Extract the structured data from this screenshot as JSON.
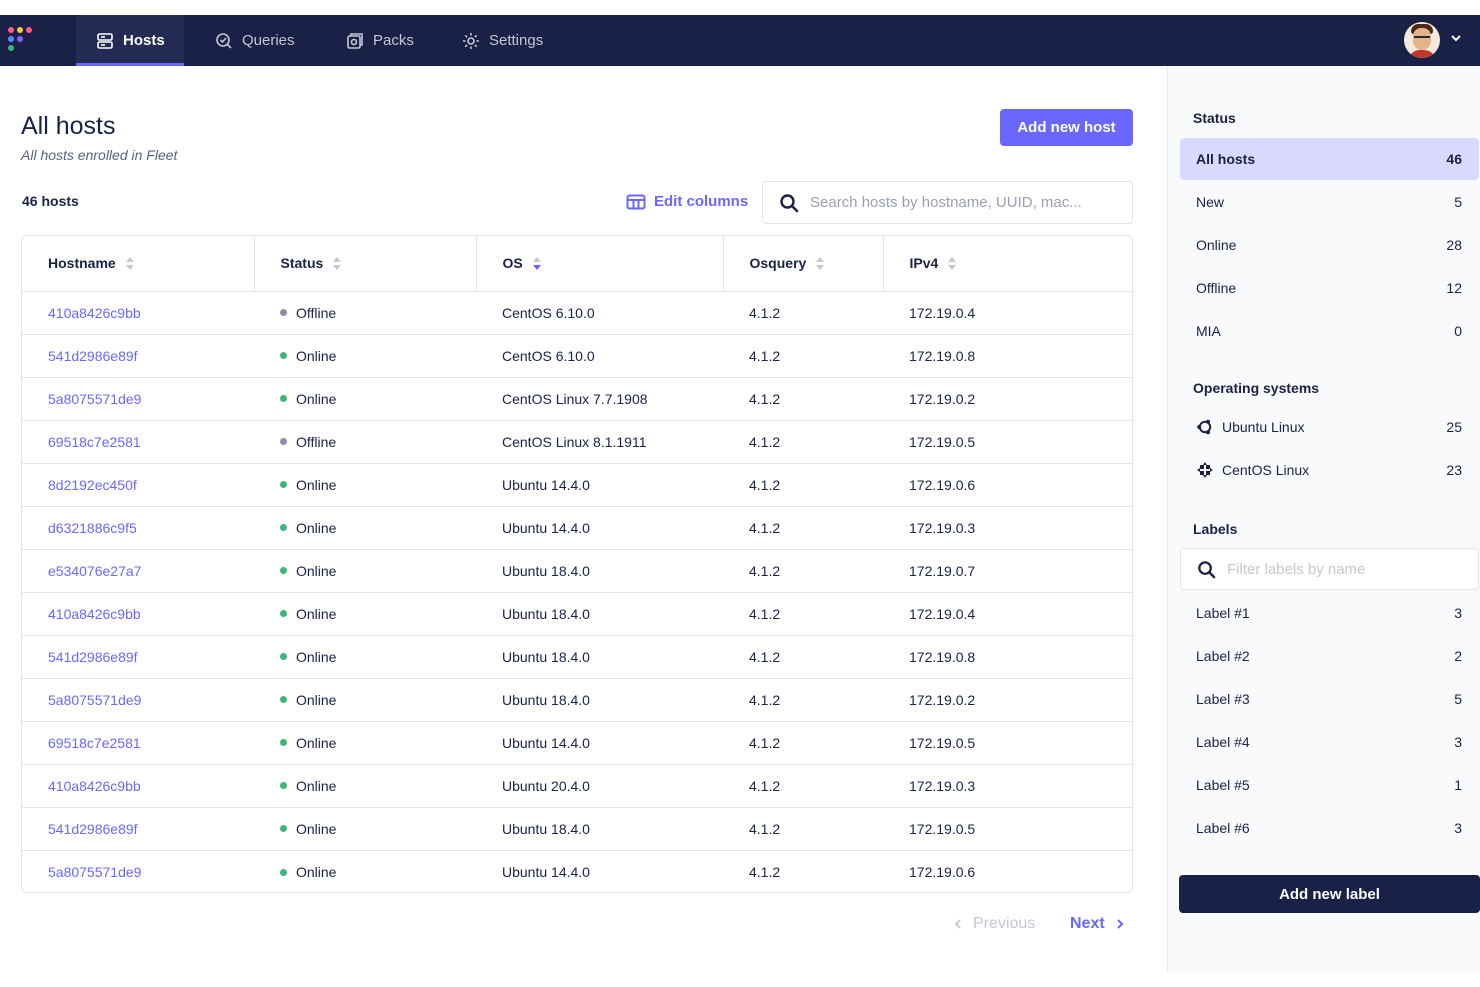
{
  "nav": {
    "items": [
      {
        "label": "Hosts",
        "icon": "hosts-icon",
        "active": true
      },
      {
        "label": "Queries",
        "icon": "queries-icon",
        "active": false
      },
      {
        "label": "Packs",
        "icon": "packs-icon",
        "active": false
      },
      {
        "label": "Settings",
        "icon": "settings-icon",
        "active": false
      }
    ],
    "logo_colors": [
      "#ff5c83",
      "#ffca3a",
      "#3db67b",
      "#5c8bff",
      "#8c5cff",
      "#ff8c5c"
    ]
  },
  "header": {
    "title": "All hosts",
    "subtitle": "All hosts enrolled in Fleet",
    "add_host_label": "Add new host"
  },
  "toolbar": {
    "host_count": "46 hosts",
    "edit_columns_label": "Edit columns",
    "search_placeholder": "Search hosts by hostname, UUID, mac...",
    "search_value": ""
  },
  "table": {
    "columns": [
      "Hostname",
      "Status",
      "OS",
      "Osquery",
      "IPv4"
    ],
    "rows": [
      {
        "hostname": "410a8426c9bb",
        "status": "Offline",
        "os": "CentOS 6.10.0",
        "osquery": "4.1.2",
        "ipv4": "172.19.0.4"
      },
      {
        "hostname": "541d2986e89f",
        "status": "Online",
        "os": "CentOS 6.10.0",
        "osquery": "4.1.2",
        "ipv4": "172.19.0.8"
      },
      {
        "hostname": "5a8075571de9",
        "status": "Online",
        "os": "CentOS Linux 7.7.1908",
        "osquery": "4.1.2",
        "ipv4": "172.19.0.2"
      },
      {
        "hostname": "69518c7e2581",
        "status": "Offline",
        "os": "CentOS Linux 8.1.1911",
        "osquery": "4.1.2",
        "ipv4": "172.19.0.5"
      },
      {
        "hostname": "8d2192ec450f",
        "status": "Online",
        "os": "Ubuntu 14.4.0",
        "osquery": "4.1.2",
        "ipv4": "172.19.0.6"
      },
      {
        "hostname": "d6321886c9f5",
        "status": "Online",
        "os": "Ubuntu 14.4.0",
        "osquery": "4.1.2",
        "ipv4": "172.19.0.3"
      },
      {
        "hostname": "e534076e27a7",
        "status": "Online",
        "os": "Ubuntu 18.4.0",
        "osquery": "4.1.2",
        "ipv4": "172.19.0.7"
      },
      {
        "hostname": "410a8426c9bb",
        "status": "Online",
        "os": "Ubuntu 18.4.0",
        "osquery": "4.1.2",
        "ipv4": "172.19.0.4"
      },
      {
        "hostname": "541d2986e89f",
        "status": "Online",
        "os": "Ubuntu 18.4.0",
        "osquery": "4.1.2",
        "ipv4": "172.19.0.8"
      },
      {
        "hostname": "5a8075571de9",
        "status": "Online",
        "os": "Ubuntu 18.4.0",
        "osquery": "4.1.2",
        "ipv4": "172.19.0.2"
      },
      {
        "hostname": "69518c7e2581",
        "status": "Online",
        "os": "Ubuntu 14.4.0",
        "osquery": "4.1.2",
        "ipv4": "172.19.0.5"
      },
      {
        "hostname": "410a8426c9bb",
        "status": "Online",
        "os": "Ubuntu 20.4.0",
        "osquery": "4.1.2",
        "ipv4": "172.19.0.3"
      },
      {
        "hostname": "541d2986e89f",
        "status": "Online",
        "os": "Ubuntu 18.4.0",
        "osquery": "4.1.2",
        "ipv4": "172.19.0.5"
      },
      {
        "hostname": "5a8075571de9",
        "status": "Online",
        "os": "Ubuntu 14.4.0",
        "osquery": "4.1.2",
        "ipv4": "172.19.0.6"
      }
    ]
  },
  "pagination": {
    "previous_label": "Previous",
    "next_label": "Next"
  },
  "sidebar": {
    "status_heading": "Status",
    "status_items": [
      {
        "label": "All hosts",
        "count": "46",
        "active": true
      },
      {
        "label": "New",
        "count": "5",
        "active": false
      },
      {
        "label": "Online",
        "count": "28",
        "active": false
      },
      {
        "label": "Offline",
        "count": "12",
        "active": false
      },
      {
        "label": "MIA",
        "count": "0",
        "active": false
      }
    ],
    "os_heading": "Operating systems",
    "os_items": [
      {
        "label": "Ubuntu Linux",
        "count": "25",
        "icon": "ubuntu-icon"
      },
      {
        "label": "CentOS Linux",
        "count": "23",
        "icon": "centos-icon"
      }
    ],
    "labels_heading": "Labels",
    "labels_search_placeholder": "Filter labels by name",
    "label_items": [
      {
        "label": "Label #1",
        "count": "3"
      },
      {
        "label": "Label #2",
        "count": "2"
      },
      {
        "label": "Label #3",
        "count": "5"
      },
      {
        "label": "Label #4",
        "count": "3"
      },
      {
        "label": "Label #5",
        "count": "1"
      },
      {
        "label": "Label #6",
        "count": "3"
      }
    ],
    "add_label_label": "Add new label"
  },
  "colors": {
    "nav_bg": "#192147",
    "accent": "#6a67fe",
    "online": "#3db67b",
    "offline": "#8b8fa2",
    "active_filter_bg": "#d9d9fe"
  }
}
